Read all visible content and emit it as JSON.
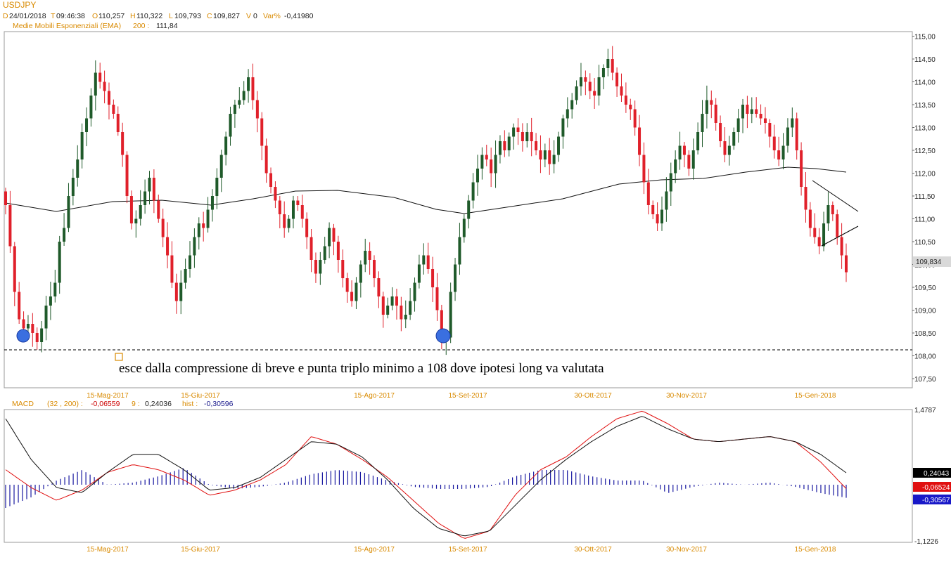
{
  "header": {
    "symbol": "USDJPY",
    "d_label": "D",
    "date": "24/01/2018",
    "t_label": "T",
    "time": "09:46:38",
    "o_label": "O",
    "open": "110,257",
    "h_label": "H",
    "high": "110,322",
    "l_label": "L",
    "low": "109,793",
    "c_label": "C",
    "close": "109,827",
    "v_label": "V",
    "volume": "0",
    "var_label": "Var%",
    "var": "-0,41980",
    "ema_label": "Medie Mobili Esponenziali (EMA)",
    "ema_period": "200 :",
    "ema_value": "111,84"
  },
  "macd_header": {
    "label": "MACD",
    "params": "(32 , 200) :",
    "macd_value": "-0,06559",
    "signal_label": "9 :",
    "signal_value": "0,24036",
    "hist_label": "hist :",
    "hist_value": "-0,30596"
  },
  "annotation": "esce dalla compressione di breve e punta triplo minimo a 108 dove ipotesi long va valutata",
  "chart_data": [
    {
      "type": "candlestick",
      "title": "USDJPY",
      "x_labels": [
        "15-Mag-2017",
        "15-Giu-2017",
        "15-Ago-2017",
        "15-Set-2017",
        "30-Ott-2017",
        "30-Nov-2017",
        "15-Gen-2018"
      ],
      "ylim": [
        107.3,
        115.1
      ],
      "y_ticks": [
        "115,00",
        "114,50",
        "114,00",
        "113,50",
        "113,00",
        "112,50",
        "112,00",
        "111,50",
        "111,00",
        "110,50",
        "110,00",
        "109,50",
        "109,00",
        "108,50",
        "108,00",
        "107,50"
      ],
      "last_price_label": "109,834",
      "last_price": 109.834,
      "support_level": 108.13,
      "closes": [
        111.3,
        110.4,
        109.4,
        108.8,
        108.6,
        108.7,
        108.5,
        108.3,
        108.6,
        109.1,
        109.3,
        109.6,
        110.5,
        110.8,
        111.5,
        111.9,
        112.3,
        112.9,
        113.2,
        113.7,
        114.2,
        114.0,
        113.8,
        113.5,
        113.3,
        112.9,
        112.4,
        111.5,
        110.9,
        111.0,
        111.3,
        111.6,
        111.9,
        111.4,
        111.0,
        110.6,
        110.2,
        109.6,
        109.2,
        109.6,
        109.9,
        110.2,
        110.6,
        110.9,
        110.8,
        111.2,
        111.5,
        111.9,
        112.4,
        112.8,
        113.3,
        113.5,
        113.6,
        113.8,
        114.1,
        113.6,
        113.2,
        112.6,
        112.0,
        111.7,
        111.4,
        111.1,
        110.8,
        111.0,
        111.4,
        111.3,
        111.0,
        110.6,
        110.1,
        109.8,
        110.1,
        110.4,
        110.8,
        110.5,
        110.1,
        109.7,
        109.4,
        109.2,
        109.6,
        110.0,
        110.3,
        110.1,
        109.7,
        109.3,
        108.9,
        109.1,
        109.3,
        109.1,
        108.8,
        108.9,
        109.2,
        109.6,
        110.0,
        110.2,
        109.9,
        109.5,
        109.0,
        108.3,
        108.4,
        109.4,
        110.0,
        110.6,
        111.0,
        111.4,
        111.8,
        112.1,
        112.4,
        112.3,
        112.0,
        112.4,
        112.7,
        112.5,
        112.8,
        113.0,
        112.9,
        112.7,
        112.9,
        112.7,
        112.5,
        112.3,
        112.5,
        112.2,
        112.4,
        112.8,
        113.2,
        113.4,
        113.6,
        113.9,
        114.1,
        114.0,
        113.8,
        113.7,
        114.1,
        114.3,
        114.5,
        114.2,
        113.9,
        113.7,
        113.5,
        113.4,
        113.0,
        112.4,
        111.8,
        111.3,
        111.1,
        110.9,
        111.2,
        111.6,
        112.0,
        112.3,
        112.6,
        112.4,
        112.1,
        112.5,
        112.9,
        113.3,
        113.6,
        113.5,
        113.1,
        112.7,
        112.4,
        112.6,
        112.9,
        113.2,
        113.5,
        113.3,
        113.4,
        113.3,
        113.2,
        113.1,
        112.8,
        112.5,
        112.3,
        112.6,
        113.0,
        113.2,
        112.5,
        111.7,
        111.2,
        110.8,
        110.6,
        110.4,
        110.9,
        111.3,
        111.1,
        110.6,
        110.2,
        109.83
      ]
    },
    {
      "type": "line",
      "title": "MACD",
      "ylim": [
        -1.1226,
        1.4787
      ],
      "y_ticks": [
        "1,4787",
        "-1,1226"
      ],
      "value_labels": [
        "0,24043",
        "-0,06524",
        "-0,30567"
      ],
      "x_labels": [
        "15-Mag-2017",
        "15-Giu-2017",
        "15-Ago-2017",
        "15-Set-2017",
        "30-Ott-2017",
        "30-Nov-2017",
        "15-Gen-2018"
      ],
      "series": [
        {
          "name": "MACD",
          "values": [
            0.3,
            -0.05,
            -0.3,
            -0.1,
            0.25,
            0.4,
            0.3,
            0.1,
            -0.2,
            -0.1,
            0.1,
            0.4,
            0.95,
            0.8,
            0.5,
            0.15,
            -0.3,
            -0.75,
            -1.05,
            -0.9,
            -0.2,
            0.3,
            0.55,
            0.95,
            1.3,
            1.45,
            1.2,
            0.9,
            0.85,
            0.9,
            0.95,
            0.85,
            0.45,
            -0.07
          ]
        },
        {
          "name": "Signal",
          "values": [
            1.3,
            0.5,
            -0.05,
            -0.15,
            0.25,
            0.6,
            0.6,
            0.3,
            -0.1,
            -0.05,
            0.15,
            0.5,
            0.85,
            0.8,
            0.55,
            0.1,
            -0.45,
            -0.85,
            -1.0,
            -0.9,
            -0.4,
            0.1,
            0.5,
            0.85,
            1.15,
            1.35,
            1.1,
            0.9,
            0.85,
            0.9,
            0.95,
            0.85,
            0.6,
            0.24
          ]
        },
        {
          "name": "Hist",
          "values": [
            -0.55,
            -0.3,
            0.1,
            0.35,
            0.0,
            0.05,
            0.2,
            0.4,
            0.0,
            -0.1,
            -0.05,
            0.05,
            0.25,
            0.35,
            0.3,
            0.1,
            -0.05,
            -0.1,
            -0.1,
            -0.05,
            0.2,
            0.35,
            0.35,
            0.2,
            0.1,
            0.1,
            -0.2,
            -0.05,
            0.05,
            0.0,
            0.05,
            -0.05,
            -0.2,
            -0.31
          ]
        }
      ]
    }
  ]
}
